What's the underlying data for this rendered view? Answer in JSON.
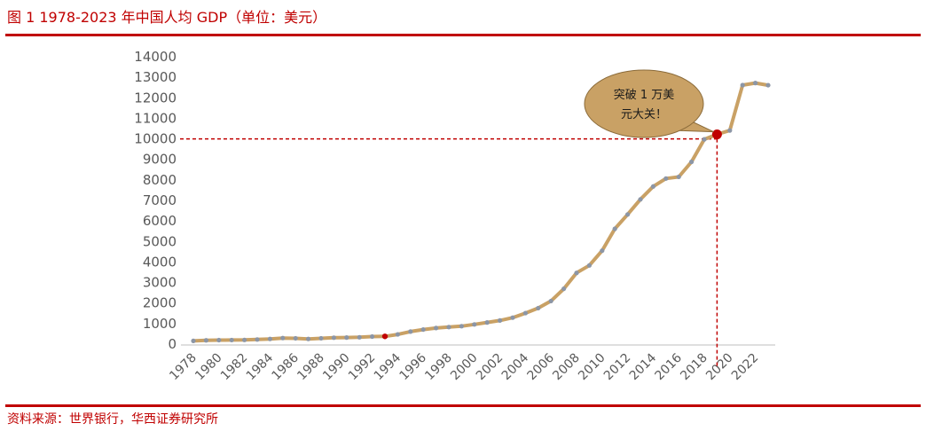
{
  "figure": {
    "label": "图 1",
    "title": "1978-2023 年中国人均 GDP（单位：美元）",
    "source": "资料来源：世界银行，华西证券研究所"
  },
  "colors": {
    "accent": "#c00000",
    "line": "#c9a165",
    "point": "#8c96a6",
    "callout_fill": "#c9a165",
    "highlight": "#c00000"
  },
  "chart_data": {
    "type": "line",
    "title": "",
    "xlabel": "",
    "ylabel": "",
    "ylim": [
      0,
      14000
    ],
    "yticks": [
      0,
      1000,
      2000,
      3000,
      4000,
      5000,
      6000,
      7000,
      8000,
      9000,
      10000,
      11000,
      12000,
      13000,
      14000
    ],
    "xticks": [
      1978,
      1980,
      1982,
      1984,
      1986,
      1988,
      1990,
      1992,
      1994,
      1996,
      1998,
      2000,
      2002,
      2004,
      2006,
      2008,
      2010,
      2012,
      2014,
      2016,
      2018,
      2020,
      2022
    ],
    "grid": false,
    "legend": "none",
    "series": [
      {
        "x": [
          1978,
          1979,
          1980,
          1981,
          1982,
          1983,
          1984,
          1985,
          1986,
          1987,
          1988,
          1989,
          1990,
          1991,
          1992,
          1993,
          1994,
          1995,
          1996,
          1997,
          1998,
          1999,
          2000,
          2001,
          2002,
          2003,
          2004,
          2005,
          2006,
          2007,
          2008,
          2009,
          2010,
          2011,
          2012,
          2013,
          2014,
          2015,
          2016,
          2017,
          2018,
          2019,
          2020,
          2021,
          2022,
          2023
        ],
        "values": [
          156,
          183,
          195,
          197,
          203,
          225,
          251,
          294,
          282,
          252,
          283,
          310,
          318,
          333,
          366,
          377,
          473,
          610,
          709,
          782,
          829,
          873,
          959,
          1053,
          1149,
          1289,
          1509,
          1753,
          2099,
          2694,
          3468,
          3832,
          4550,
          5618,
          6317,
          7051,
          7679,
          8067,
          8147,
          8879,
          9977,
          10217,
          10409,
          12618,
          12720,
          12614
        ]
      }
    ],
    "highlights": [
      {
        "x": 1993,
        "y": 377
      },
      {
        "x": 2019,
        "y": 10217
      }
    ],
    "reference": {
      "y": 10000,
      "x": 2019
    },
    "annotation": {
      "line1": "突破 1 万美",
      "line2": "元大关！"
    }
  }
}
